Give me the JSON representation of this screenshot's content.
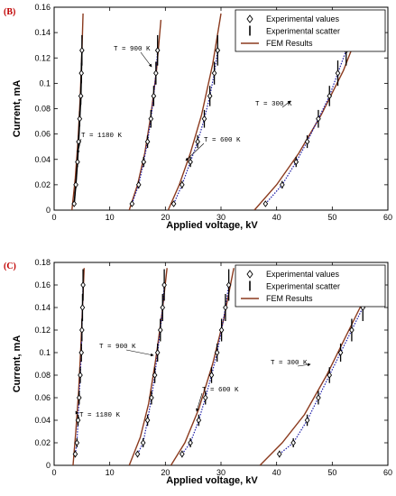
{
  "chart_data": [
    {
      "type": "line",
      "panel_label": "(B)",
      "xlabel": "Applied voltage, kV",
      "ylabel": "Current, mA",
      "xlim": [
        0,
        60
      ],
      "ylim": [
        0,
        0.16
      ],
      "xticks": [
        "0",
        "10",
        "20",
        "30",
        "40",
        "50",
        "60"
      ],
      "yticks": [
        "0",
        "0.02",
        "0.04",
        "0.06",
        "0.08",
        "0.1",
        "0.12",
        "0.14",
        "0.16"
      ],
      "grid": false,
      "legend_position": "top-right",
      "legend": [
        "Experimental values",
        "Experimental scatter",
        "FEM Results"
      ],
      "annotations": [
        "T = 1180 K",
        "T = 900 K",
        "T = 600 K",
        "T = 300 K"
      ],
      "series": [
        {
          "experimental": {
            "x": [
              3.6,
              3.9,
              4.2,
              4.4,
              4.6,
              4.8,
              4.9,
              5.0
            ],
            "y": [
              0.005,
              0.02,
              0.038,
              0.054,
              0.072,
              0.09,
              0.108,
              0.126
            ]
          },
          "scatter_half_range": [
            0.002,
            0.003,
            0.004,
            0.005,
            0.006,
            0.007,
            0.008,
            0.012
          ],
          "fem": {
            "x": [
              3.2,
              3.8,
              4.3,
              4.7,
              5.0,
              5.2
            ],
            "y": [
              0.0,
              0.025,
              0.055,
              0.09,
              0.125,
              0.155
            ]
          }
        },
        {
          "experimental": {
            "x": [
              14.0,
              15.2,
              16.1,
              16.8,
              17.4,
              17.9,
              18.3,
              18.6
            ],
            "y": [
              0.005,
              0.02,
              0.038,
              0.054,
              0.072,
              0.09,
              0.108,
              0.126
            ]
          },
          "scatter_half_range": [
            0.002,
            0.003,
            0.004,
            0.005,
            0.007,
            0.008,
            0.009,
            0.012
          ],
          "fem": {
            "x": [
              13.5,
              15.0,
              16.3,
              17.4,
              18.4,
              19.2
            ],
            "y": [
              0.0,
              0.02,
              0.045,
              0.075,
              0.11,
              0.15
            ]
          }
        },
        {
          "experimental": {
            "x": [
              21.5,
              23.0,
              24.5,
              25.8,
              27.0,
              28.0,
              28.8,
              29.4
            ],
            "y": [
              0.005,
              0.02,
              0.038,
              0.054,
              0.072,
              0.09,
              0.108,
              0.126
            ]
          },
          "scatter_half_range": [
            0.002,
            0.003,
            0.004,
            0.005,
            0.007,
            0.008,
            0.009,
            0.012
          ],
          "fem": {
            "x": [
              20.5,
              22.5,
              24.5,
              26.5,
              28.5,
              30.0
            ],
            "y": [
              0.0,
              0.02,
              0.045,
              0.075,
              0.115,
              0.155
            ]
          }
        },
        {
          "experimental": {
            "x": [
              38.0,
              41.0,
              43.5,
              45.5,
              47.5,
              49.5,
              51.0,
              52.5
            ],
            "y": [
              0.005,
              0.02,
              0.038,
              0.054,
              0.072,
              0.09,
              0.108,
              0.126
            ]
          },
          "scatter_half_range": [
            0.002,
            0.003,
            0.004,
            0.005,
            0.007,
            0.008,
            0.01,
            0.012
          ],
          "fem": {
            "x": [
              36.0,
              40.0,
              44.0,
              48.0,
              52.0,
              56.0
            ],
            "y": [
              0.0,
              0.02,
              0.045,
              0.075,
              0.11,
              0.155
            ]
          }
        }
      ]
    },
    {
      "type": "line",
      "panel_label": "(C)",
      "xlabel": "Applied voltage, kV",
      "ylabel": "Current, mA",
      "xlim": [
        0,
        60
      ],
      "ylim": [
        0,
        0.18
      ],
      "xticks": [
        "0",
        "10",
        "20",
        "30",
        "40",
        "50",
        "60"
      ],
      "yticks": [
        "0",
        "0.02",
        "0.04",
        "0.06",
        "0.08",
        "0.1",
        "0.12",
        "0.14",
        "0.16",
        "0.18"
      ],
      "grid": false,
      "legend_position": "top-right",
      "legend": [
        "Experimental values",
        "Experimental scatter",
        "FEM Results"
      ],
      "annotations": [
        "T = 1180 K",
        "T = 900 K",
        "T = 600 K",
        "T = 300 K"
      ],
      "series": [
        {
          "experimental": {
            "x": [
              3.8,
              4.1,
              4.3,
              4.5,
              4.7,
              4.9,
              5.0,
              5.1,
              5.2
            ],
            "y": [
              0.01,
              0.02,
              0.04,
              0.06,
              0.08,
              0.1,
              0.12,
              0.14,
              0.16
            ]
          },
          "scatter_half_range": [
            0.003,
            0.004,
            0.005,
            0.006,
            0.007,
            0.008,
            0.01,
            0.012,
            0.014
          ],
          "fem": {
            "x": [
              3.4,
              3.9,
              4.4,
              4.8,
              5.1,
              5.4
            ],
            "y": [
              0.0,
              0.03,
              0.065,
              0.105,
              0.14,
              0.175
            ]
          }
        },
        {
          "experimental": {
            "x": [
              15.0,
              16.0,
              16.8,
              17.5,
              18.1,
              18.6,
              19.1,
              19.5,
              19.8
            ],
            "y": [
              0.01,
              0.02,
              0.04,
              0.06,
              0.08,
              0.1,
              0.12,
              0.14,
              0.16
            ]
          },
          "scatter_half_range": [
            0.003,
            0.004,
            0.005,
            0.006,
            0.007,
            0.008,
            0.01,
            0.012,
            0.014
          ],
          "fem": {
            "x": [
              13.5,
              15.5,
              17.0,
              18.3,
              19.4,
              20.3
            ],
            "y": [
              0.0,
              0.025,
              0.055,
              0.095,
              0.135,
              0.175
            ]
          }
        },
        {
          "experimental": {
            "x": [
              23.0,
              24.5,
              26.0,
              27.2,
              28.3,
              29.3,
              30.1,
              30.8,
              31.4
            ],
            "y": [
              0.01,
              0.02,
              0.04,
              0.06,
              0.08,
              0.1,
              0.12,
              0.14,
              0.16
            ]
          },
          "scatter_half_range": [
            0.003,
            0.004,
            0.005,
            0.006,
            0.007,
            0.008,
            0.01,
            0.012,
            0.014
          ],
          "fem": {
            "x": [
              21.0,
              23.5,
              26.0,
              28.5,
              30.5,
              32.3
            ],
            "y": [
              0.0,
              0.02,
              0.05,
              0.09,
              0.13,
              0.175
            ]
          }
        },
        {
          "experimental": {
            "x": [
              40.5,
              43.0,
              45.5,
              47.5,
              49.5,
              51.5,
              53.5,
              55.5
            ],
            "y": [
              0.01,
              0.02,
              0.04,
              0.06,
              0.08,
              0.1,
              0.12,
              0.14
            ]
          },
          "scatter_half_range": [
            0.003,
            0.004,
            0.005,
            0.006,
            0.007,
            0.008,
            0.01,
            0.012
          ],
          "fem": {
            "x": [
              37.0,
              41.0,
              45.0,
              49.0,
              53.0,
              57.0
            ],
            "y": [
              0.0,
              0.02,
              0.045,
              0.08,
              0.12,
              0.16
            ]
          }
        }
      ]
    }
  ]
}
